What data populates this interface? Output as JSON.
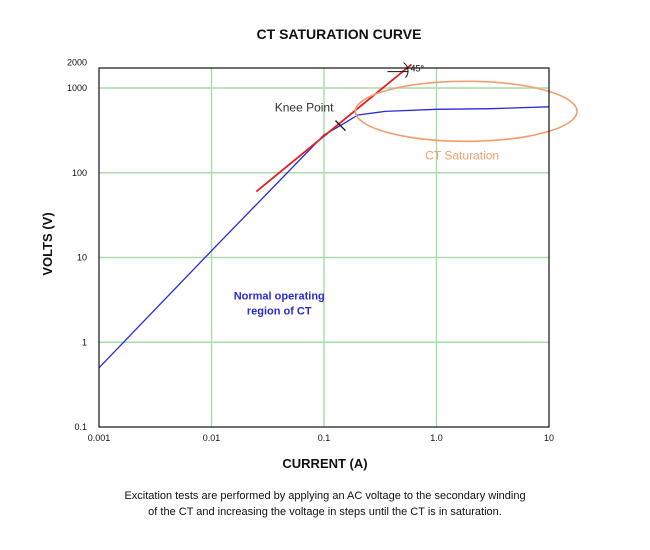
{
  "chart_data": {
    "type": "line",
    "title": "CT SATURATION CURVE",
    "xlabel": "CURRENT (A)",
    "ylabel": "VOLTS (V)",
    "x_scale": "log",
    "y_scale": "log",
    "xlim": [
      0.001,
      10
    ],
    "ylim": [
      0.1,
      2000
    ],
    "grid": true,
    "x_ticks": [
      {
        "value": 0.001,
        "label": "0.001"
      },
      {
        "value": 0.01,
        "label": "0.01"
      },
      {
        "value": 0.1,
        "label": "0.1"
      },
      {
        "value": 1,
        "label": "1.0"
      },
      {
        "value": 10,
        "label": "10"
      }
    ],
    "y_ticks": [
      {
        "value": 0.1,
        "label": "0.1"
      },
      {
        "value": 1,
        "label": "1"
      },
      {
        "value": 10,
        "label": "10"
      },
      {
        "value": 100,
        "label": "100"
      },
      {
        "value": 1000,
        "label": "1000"
      },
      {
        "value": 2000,
        "label": "2000"
      }
    ],
    "series": [
      {
        "color": "#2b2bd6",
        "points": [
          {
            "x": 0.001,
            "y": 0.5
          },
          {
            "x": 0.01,
            "y": 12
          },
          {
            "x": 0.1,
            "y": 280
          },
          {
            "x": 0.14,
            "y": 360
          },
          {
            "x": 0.2,
            "y": 480
          },
          {
            "x": 0.35,
            "y": 530
          },
          {
            "x": 1,
            "y": 560
          },
          {
            "x": 3,
            "y": 570
          },
          {
            "x": 10,
            "y": 600
          }
        ]
      },
      {
        "color": "#e02020",
        "points": [
          {
            "x": 0.025,
            "y": 60
          },
          {
            "x": 0.6,
            "y": 1900
          }
        ]
      }
    ],
    "annotations": {
      "knee_label": "Knee Point",
      "knee_point": {
        "x": 0.14,
        "y": 360
      },
      "angle_label": "45°",
      "saturation_label": "CT Saturation",
      "normal_region_line1": "Normal operating",
      "normal_region_line2": "region of CT"
    },
    "colors": {
      "grid": "#a8dca8",
      "saturation": "#f0a070",
      "normal_text": "#2b2bd6",
      "tangent": "#e02020"
    }
  },
  "caption": {
    "line1": "Excitation tests are performed by applying an AC voltage to the secondary winding",
    "line2": "of the CT and increasing the voltage in steps until the CT is in saturation."
  }
}
